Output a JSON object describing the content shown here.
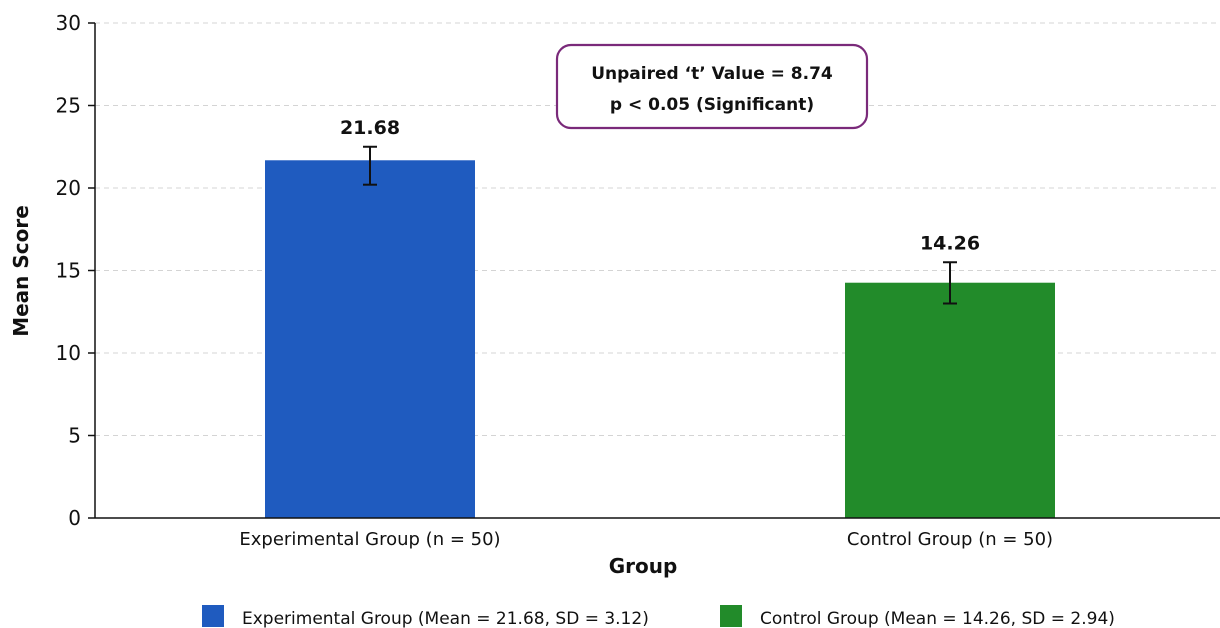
{
  "chart_data": {
    "type": "bar",
    "categories": [
      "Experimental Group (n = 50)",
      "Control Group (n = 50)"
    ],
    "values": [
      21.68,
      14.26
    ],
    "value_labels": [
      "21.68",
      "14.26"
    ],
    "error_bars": [
      {
        "low": 20.2,
        "high": 22.5
      },
      {
        "low": 13.0,
        "high": 15.5
      }
    ],
    "colors": [
      "#1f5bbf",
      "#228b2a"
    ],
    "xlabel": "Group",
    "ylabel": "Mean Score",
    "ylim": [
      0,
      30
    ],
    "yticks": [
      0,
      5,
      10,
      15,
      20,
      25,
      30
    ],
    "grid": "horizontal dashed",
    "annotation": {
      "line1": "Unpaired ‘t’ Value = 8.74",
      "line2": "p < 0.05 (Significant)",
      "border_color": "#7a2a7a"
    },
    "legend": {
      "placement": "bottom",
      "items": [
        {
          "label": "Experimental Group (Mean = 21.68, SD = 3.12)",
          "color": "#1f5bbf"
        },
        {
          "label": "Control Group (Mean = 14.26, SD = 2.94)",
          "color": "#228b2a"
        }
      ]
    }
  }
}
